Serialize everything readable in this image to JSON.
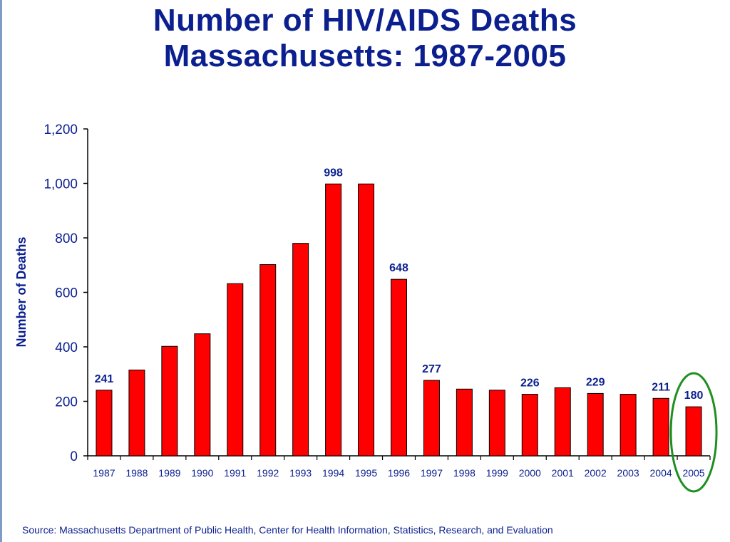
{
  "title": {
    "line1": "Number of HIV/AIDS Deaths",
    "line2": "Massachusetts: 1987-2005"
  },
  "source": "Source:  Massachusetts Department of Public Health, Center for Health Information, Statistics, Research, and Evaluation",
  "chart_data": {
    "type": "bar",
    "title": "Number of HIV/AIDS Deaths Massachusetts: 1987-2005",
    "xlabel": "",
    "ylabel": "Number of Deaths",
    "ylim": [
      0,
      1200
    ],
    "yticks": [
      0,
      200,
      400,
      600,
      800,
      1000,
      1200
    ],
    "ytick_labels": [
      "0",
      "200",
      "400",
      "600",
      "800",
      "1,000",
      "1,200"
    ],
    "categories": [
      "1987",
      "1988",
      "1989",
      "1990",
      "1991",
      "1992",
      "1993",
      "1994",
      "1995",
      "1996",
      "1997",
      "1998",
      "1999",
      "2000",
      "2001",
      "2002",
      "2003",
      "2004",
      "2005"
    ],
    "values": [
      241,
      315,
      402,
      448,
      632,
      702,
      780,
      998,
      998,
      648,
      277,
      245,
      241,
      226,
      250,
      229,
      226,
      211,
      180
    ],
    "data_labels": {
      "1987": "241",
      "1994": "998",
      "1996": "648",
      "1997": "277",
      "2000": "226",
      "2002": "229",
      "2004": "211",
      "2005": "180"
    },
    "highlight": "2005",
    "grid": false,
    "colors": {
      "bar": "#ff0000",
      "bar_outline": "#000000",
      "text": "#0b1f8f",
      "highlight_ring": "#1f8f1f"
    }
  }
}
